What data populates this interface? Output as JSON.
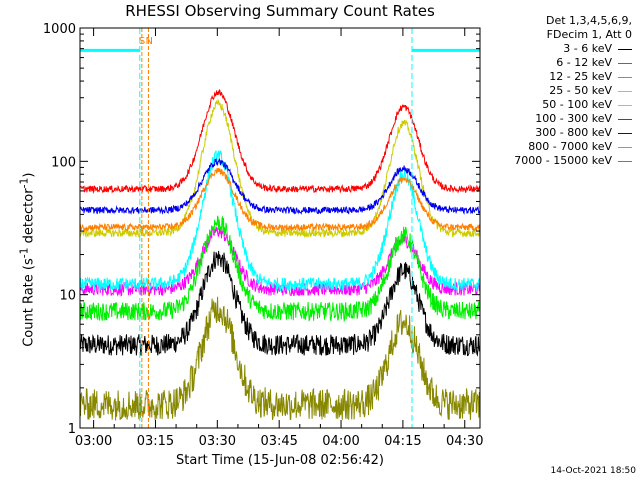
{
  "chart_data": {
    "type": "line",
    "title": "RHESSI Observing Summary Count Rates",
    "xlabel": "Start Time (15-Jun-08 02:56:42)",
    "ylabel_main": "Count Rate (s",
    "ylabel_sup1": "-1",
    "ylabel_mid": " detector",
    "ylabel_sup2": "-1",
    "ylabel_end": ")",
    "yscale": "log",
    "ylim": [
      1,
      1000
    ],
    "xlim_minutes": [
      0,
      97
    ],
    "x_ticks": [
      {
        "label": "03:00",
        "minute": 3.3
      },
      {
        "label": "03:15",
        "minute": 18.3
      },
      {
        "label": "03:30",
        "minute": 33.3
      },
      {
        "label": "03:45",
        "minute": 48.3
      },
      {
        "label": "04:00",
        "minute": 63.3
      },
      {
        "label": "04:15",
        "minute": 78.3
      },
      {
        "label": "04:30",
        "minute": 93.3
      }
    ],
    "y_ticks": [
      {
        "label": "1",
        "value": 1
      },
      {
        "label": "10",
        "value": 10
      },
      {
        "label": "100",
        "value": 100
      },
      {
        "label": "1000",
        "value": 1000
      }
    ],
    "legend_header": [
      "Det 1,3,4,5,6,9,",
      "FDecim 1, Att 0"
    ],
    "series": [
      {
        "name": "3 - 6 keV",
        "color": "#000000",
        "base": 4.2,
        "peak": 19,
        "noise": 0.08
      },
      {
        "name": "6 - 12 keV",
        "color": "#ff00ff",
        "base": 11,
        "peak": 30,
        "noise": 0.05
      },
      {
        "name": "12 - 25 keV",
        "color": "#00ee00",
        "base": 7.5,
        "peak": 35,
        "noise": 0.07
      },
      {
        "name": "25 - 50 keV",
        "color": "#00ffff",
        "base": 12,
        "peak": 110,
        "noise": 0.05
      },
      {
        "name": "50 - 100 keV",
        "color": "#cccc00",
        "base": 29,
        "peak": 270,
        "noise": 0.03
      },
      {
        "name": "100 - 300 keV",
        "color": "#ff0000",
        "base": 62,
        "peak": 330,
        "noise": 0.025
      },
      {
        "name": "300 - 800 keV",
        "color": "#0000ee",
        "base": 43,
        "peak": 100,
        "noise": 0.025
      },
      {
        "name": "800 - 7000 keV",
        "color": "#ff8000",
        "base": 32,
        "peak": 85,
        "noise": 0.025
      },
      {
        "name": "7000 - 15000 keV",
        "color": "#888800",
        "base": 1.5,
        "peak": 8,
        "noise": 0.12
      }
    ],
    "peaks_minutes": [
      33.5,
      78.5
    ],
    "markers": [
      {
        "label": "S",
        "minute": 15.0
      },
      {
        "label": "N",
        "minute": 16.6
      }
    ],
    "saa_bar_value": 680,
    "saa_intervals": [
      [
        0,
        14.5
      ],
      [
        80.5,
        97
      ]
    ],
    "cyan_vlines": [
      0,
      14.5,
      80.5,
      97
    ],
    "timestamp": "14-Oct-2021 18:50"
  }
}
